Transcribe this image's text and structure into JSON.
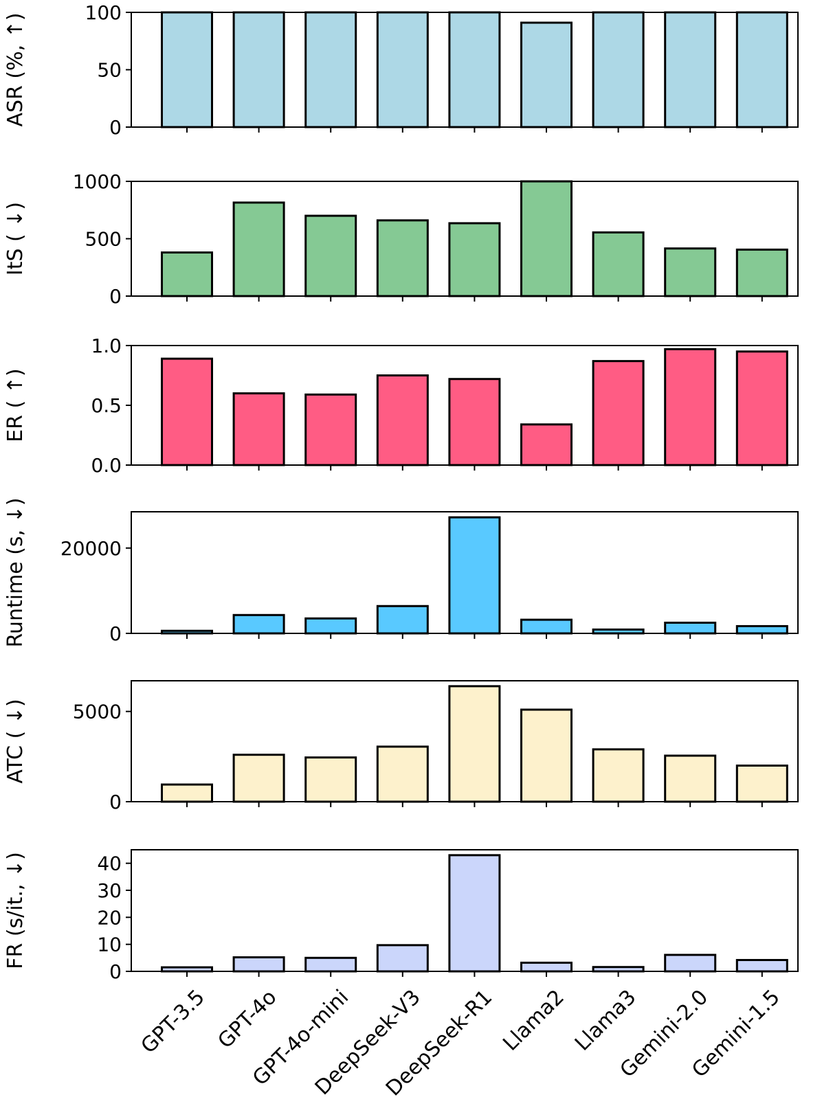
{
  "chart_data": [
    {
      "type": "bar",
      "ylabel": "ASR (%, ↑)",
      "categories": [
        "GPT-3.5",
        "GPT-4o",
        "GPT-4o-mini",
        "DeepSeek-V3",
        "DeepSeek-R1",
        "Llama2",
        "Llama3",
        "Gemini-2.0",
        "Gemini-1.5"
      ],
      "values": [
        100,
        100,
        100,
        100,
        100,
        91,
        100,
        100,
        100
      ],
      "ylim": [
        0,
        100
      ],
      "yticks": [
        0,
        50,
        100
      ],
      "ytick_labels": [
        "0",
        "50",
        "100"
      ],
      "color": "#add8e6"
    },
    {
      "type": "bar",
      "ylabel": "ItS ( ↓)",
      "categories": [
        "GPT-3.5",
        "GPT-4o",
        "GPT-4o-mini",
        "DeepSeek-V3",
        "DeepSeek-R1",
        "Llama2",
        "Llama3",
        "Gemini-2.0",
        "Gemini-1.5"
      ],
      "values": [
        380,
        815,
        700,
        660,
        635,
        1000,
        555,
        415,
        405
      ],
      "ylim": [
        0,
        1000
      ],
      "yticks": [
        0,
        500,
        1000
      ],
      "ytick_labels": [
        "0",
        "500",
        "1000"
      ],
      "color": "#85c994"
    },
    {
      "type": "bar",
      "ylabel": "ER ( ↑)",
      "categories": [
        "GPT-3.5",
        "GPT-4o",
        "GPT-4o-mini",
        "DeepSeek-V3",
        "DeepSeek-R1",
        "Llama2",
        "Llama3",
        "Gemini-2.0",
        "Gemini-1.5"
      ],
      "values": [
        0.89,
        0.6,
        0.59,
        0.75,
        0.72,
        0.34,
        0.87,
        0.97,
        0.95
      ],
      "ylim": [
        0,
        1.0
      ],
      "yticks": [
        0.0,
        0.5,
        1.0
      ],
      "ytick_labels": [
        "0.0",
        "0.5",
        "1.0"
      ],
      "color": "#ff5c84"
    },
    {
      "type": "bar",
      "ylabel": "Runtime (s, ↓)",
      "categories": [
        "GPT-3.5",
        "GPT-4o",
        "GPT-4o-mini",
        "DeepSeek-V3",
        "DeepSeek-R1",
        "Llama2",
        "Llama3",
        "Gemini-2.0",
        "Gemini-1.5"
      ],
      "values": [
        600,
        4300,
        3500,
        6400,
        27200,
        3200,
        900,
        2500,
        1700
      ],
      "ylim": [
        0,
        28500
      ],
      "yticks": [
        0,
        20000
      ],
      "ytick_labels": [
        "0",
        "20000"
      ],
      "color": "#59c9ff"
    },
    {
      "type": "bar",
      "ylabel": "ATC ( ↓)",
      "categories": [
        "GPT-3.5",
        "GPT-4o",
        "GPT-4o-mini",
        "DeepSeek-V3",
        "DeepSeek-R1",
        "Llama2",
        "Llama3",
        "Gemini-2.0",
        "Gemini-1.5"
      ],
      "values": [
        950,
        2600,
        2450,
        3050,
        6400,
        5100,
        2900,
        2550,
        2000
      ],
      "ylim": [
        0,
        6700
      ],
      "yticks": [
        0,
        5000
      ],
      "ytick_labels": [
        "0",
        "5000"
      ],
      "color": "#fdf1cc"
    },
    {
      "type": "bar",
      "ylabel": "FR (s/it., ↓)",
      "categories": [
        "GPT-3.5",
        "GPT-4o",
        "GPT-4o-mini",
        "DeepSeek-V3",
        "DeepSeek-R1",
        "Llama2",
        "Llama3",
        "Gemini-2.0",
        "Gemini-1.5"
      ],
      "values": [
        1.5,
        5.2,
        5.0,
        9.7,
        43.0,
        3.2,
        1.6,
        6.1,
        4.2
      ],
      "ylim": [
        0,
        45
      ],
      "yticks": [
        0,
        10,
        20,
        30,
        40
      ],
      "ytick_labels": [
        "0",
        "10",
        "20",
        "30",
        "40"
      ],
      "color": "#cbd6fb"
    }
  ],
  "x_tick_labels": [
    "GPT-3.5",
    "GPT-4o",
    "GPT-4o-mini",
    "DeepSeek-V3",
    "DeepSeek-R1",
    "Llama2",
    "Llama3",
    "Gemini-2.0",
    "Gemini-1.5"
  ]
}
